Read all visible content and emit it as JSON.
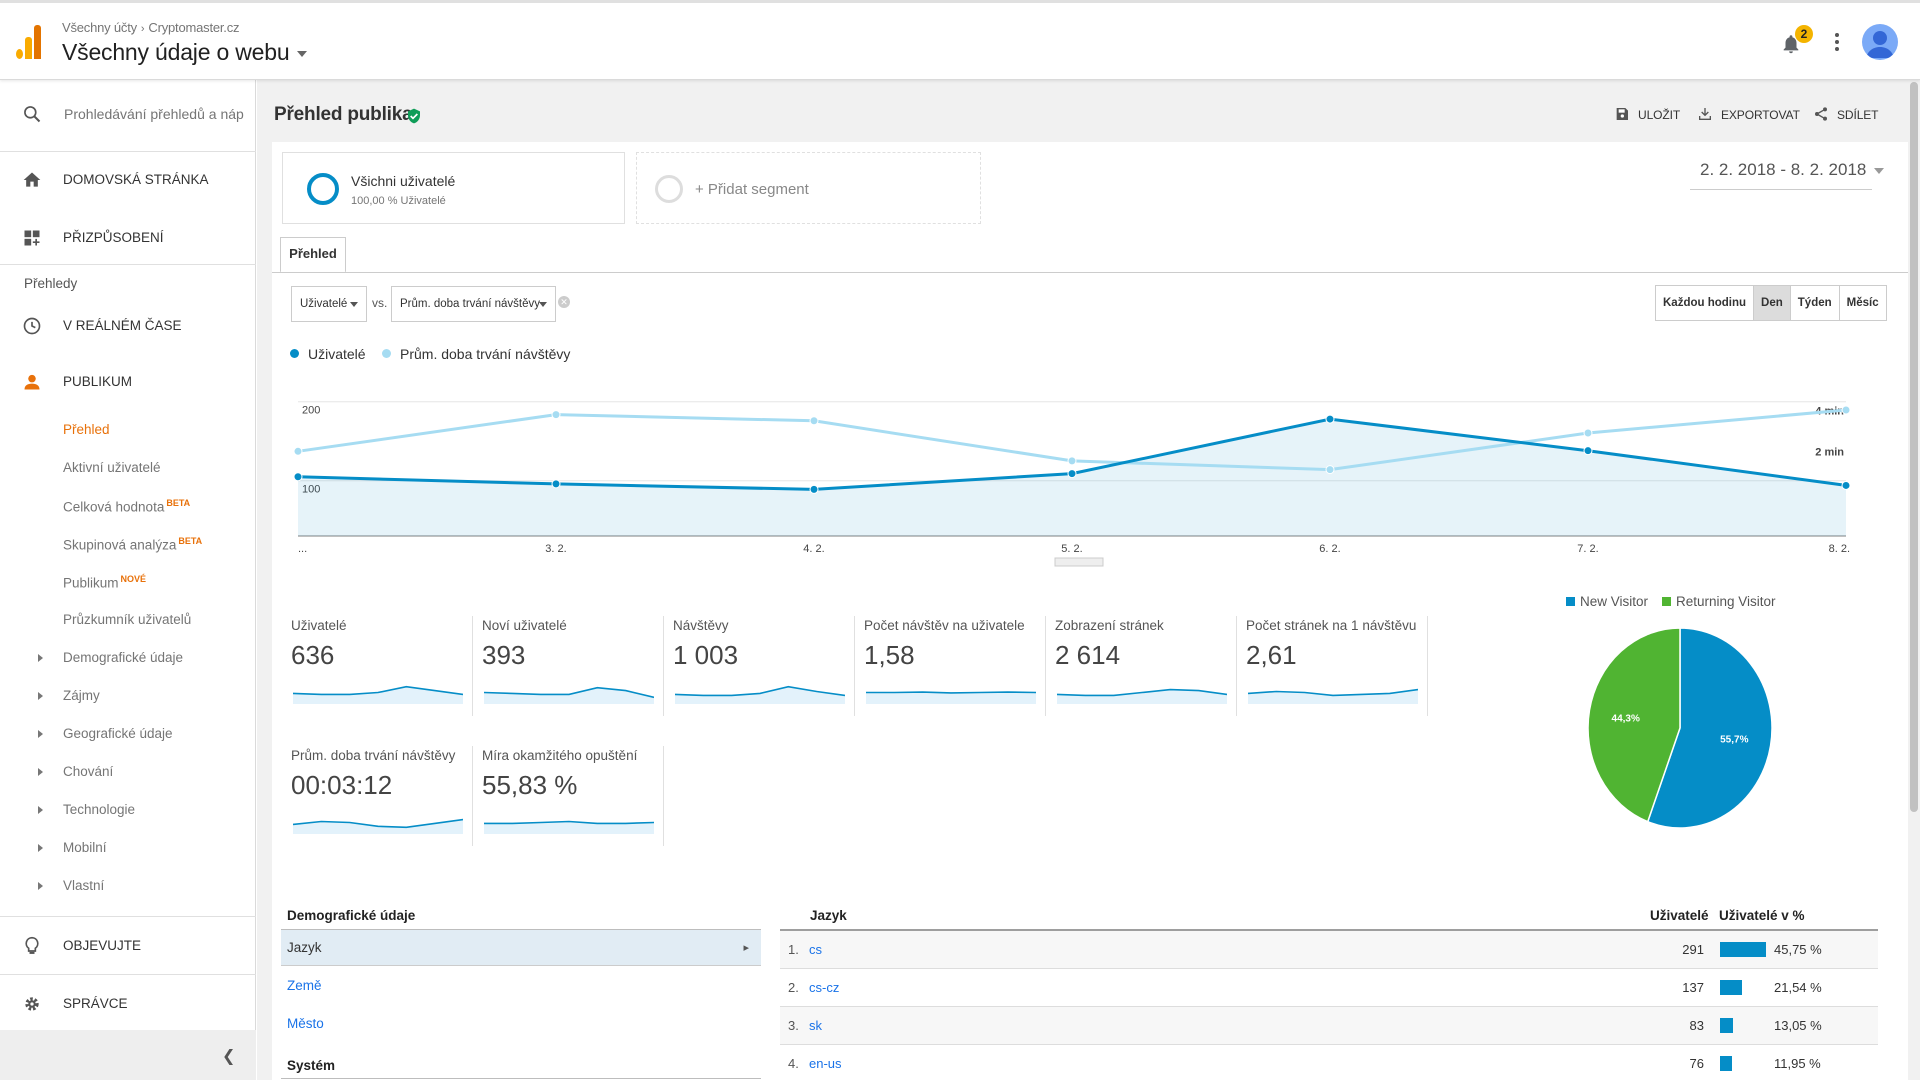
{
  "header": {
    "crumb_root": "Všechny účty",
    "crumb_account": "Cryptomaster.cz",
    "view_name": "Všechny údaje o webu",
    "notification_count": "2"
  },
  "sidebar": {
    "search_placeholder": "Prohledávání přehledů a náp",
    "home": "DOMOVSKÁ STRÁNKA",
    "customization": "PŘIZPŮSOBENÍ",
    "reports_heading": "Přehledy",
    "realtime": "V REÁLNÉM ČASE",
    "audience": "PUBLIKUM",
    "audience_items": [
      {
        "label": "Přehled",
        "tag": ""
      },
      {
        "label": "Aktivní uživatelé",
        "tag": ""
      },
      {
        "label": "Celková hodnota",
        "tag": "BETA"
      },
      {
        "label": "Skupinová analýza",
        "tag": "BETA"
      },
      {
        "label": "Publikum",
        "tag": "NOVÉ"
      },
      {
        "label": "Průzkumník uživatelů",
        "tag": ""
      }
    ],
    "expandable_items": [
      "Demografické údaje",
      "Zájmy",
      "Geografické údaje",
      "Chování",
      "Technologie",
      "Mobilní",
      "Vlastní"
    ],
    "discover": "OBJEVUJTE",
    "admin": "SPRÁVCE"
  },
  "page": {
    "title": "Přehled publika",
    "save": "ULOŽIT",
    "export": "EXPORTOVAT",
    "share": "SDÍLET",
    "date_range": "2. 2. 2018 - 8. 2. 2018"
  },
  "segments": {
    "active_title": "Všichni uživatelé",
    "active_sub": "100,00 % Uživatelé",
    "add_label": "+ Přidat segment"
  },
  "tab_label": "Přehled",
  "chart_controls": {
    "metric1": "Uživatelé",
    "vs": "vs.",
    "metric2": "Prům. doba trvání návštěvy",
    "granularity": [
      "Každou hodinu",
      "Den",
      "Týden",
      "Měsíc"
    ],
    "selected_granularity": "Den"
  },
  "chart_data": {
    "type": "line",
    "x": [
      "2. 2.",
      "3. 2.",
      "4. 2.",
      "5. 2.",
      "6. 2.",
      "7. 2.",
      "8. 2."
    ],
    "x_tick_labels": [
      "...",
      "3. 2.",
      "4. 2.",
      "5. 2.",
      "6. 2.",
      "7. 2.",
      "8. 2."
    ],
    "series": [
      {
        "name": "Uživatelé",
        "axis": "left",
        "color": "#058dc7",
        "values": [
          105,
          96,
          89,
          109,
          178,
          138,
          94
        ]
      },
      {
        "name": "Prům. doba trvání návštěvy",
        "axis": "right",
        "unit": "min",
        "color": "#a6dcf2",
        "values": [
          2.0,
          3.8,
          3.5,
          1.53,
          1.1,
          2.9,
          4.03
        ]
      }
    ],
    "left_axis": {
      "ticks": [
        "200",
        "100"
      ],
      "range": [
        30,
        230
      ]
    },
    "right_axis": {
      "ticks": [
        "4 min",
        "2 min"
      ],
      "range": [
        -2.16,
        5.6
      ]
    },
    "grid": true,
    "legend_position": "top-left"
  },
  "metrics": [
    {
      "label": "Uživatelé",
      "value": "636",
      "spark": [
        0.55,
        0.5,
        0.5,
        0.6,
        0.9,
        0.7,
        0.5
      ]
    },
    {
      "label": "Noví uživatelé",
      "value": "393",
      "spark": [
        0.6,
        0.55,
        0.5,
        0.5,
        0.85,
        0.7,
        0.35
      ]
    },
    {
      "label": "Návštěvy",
      "value": "1 003",
      "spark": [
        0.5,
        0.45,
        0.45,
        0.55,
        0.9,
        0.65,
        0.45
      ]
    },
    {
      "label": "Počet návštěv na uživatele",
      "value": "1,58",
      "spark": [
        0.6,
        0.6,
        0.62,
        0.58,
        0.6,
        0.62,
        0.6
      ]
    },
    {
      "label": "Zobrazení stránek",
      "value": "2 614",
      "spark": [
        0.5,
        0.45,
        0.45,
        0.6,
        0.75,
        0.7,
        0.5
      ]
    },
    {
      "label": "Počet stránek na 1 návštěvu",
      "value": "2,61",
      "spark": [
        0.55,
        0.65,
        0.6,
        0.45,
        0.5,
        0.55,
        0.75
      ]
    },
    {
      "label": "Prům. doba trvání návštěvy",
      "value": "00:03:12",
      "spark": [
        0.5,
        0.65,
        0.6,
        0.4,
        0.35,
        0.55,
        0.75
      ]
    },
    {
      "label": "Míra okamžitého opuštění",
      "value": "55,83 %",
      "spark": [
        0.55,
        0.55,
        0.6,
        0.65,
        0.55,
        0.55,
        0.6
      ]
    }
  ],
  "pie": {
    "slices": [
      {
        "name": "New Visitor",
        "value": 55.7,
        "label": "55,7%",
        "color": "#058dc7"
      },
      {
        "name": "Returning Visitor",
        "value": 44.3,
        "label": "44,3%",
        "color": "#50b432"
      }
    ]
  },
  "demographics": {
    "heading": "Demografické údaje",
    "rows": [
      "Jazyk",
      "Země",
      "Město"
    ],
    "selected": "Jazyk",
    "system_heading": "Systém"
  },
  "language_table": {
    "col_language": "Jazyk",
    "col_users": "Uživatelé",
    "col_users_pct": "Uživatelé v %",
    "rows": [
      {
        "idx": "1.",
        "name": "cs",
        "users": "291",
        "pct": "45,75 %",
        "pct_value": 45.75
      },
      {
        "idx": "2.",
        "name": "cs-cz",
        "users": "137",
        "pct": "21,54 %",
        "pct_value": 21.54
      },
      {
        "idx": "3.",
        "name": "sk",
        "users": "83",
        "pct": "13,05 %",
        "pct_value": 13.05
      },
      {
        "idx": "4.",
        "name": "en-us",
        "users": "76",
        "pct": "11,95 %",
        "pct_value": 11.95
      }
    ]
  },
  "colors": {
    "primary_blue": "#058dc7",
    "light_blue": "#a6dcf2",
    "green": "#50b432",
    "accent_orange": "#e8710a",
    "link_blue": "#1a73e8"
  }
}
